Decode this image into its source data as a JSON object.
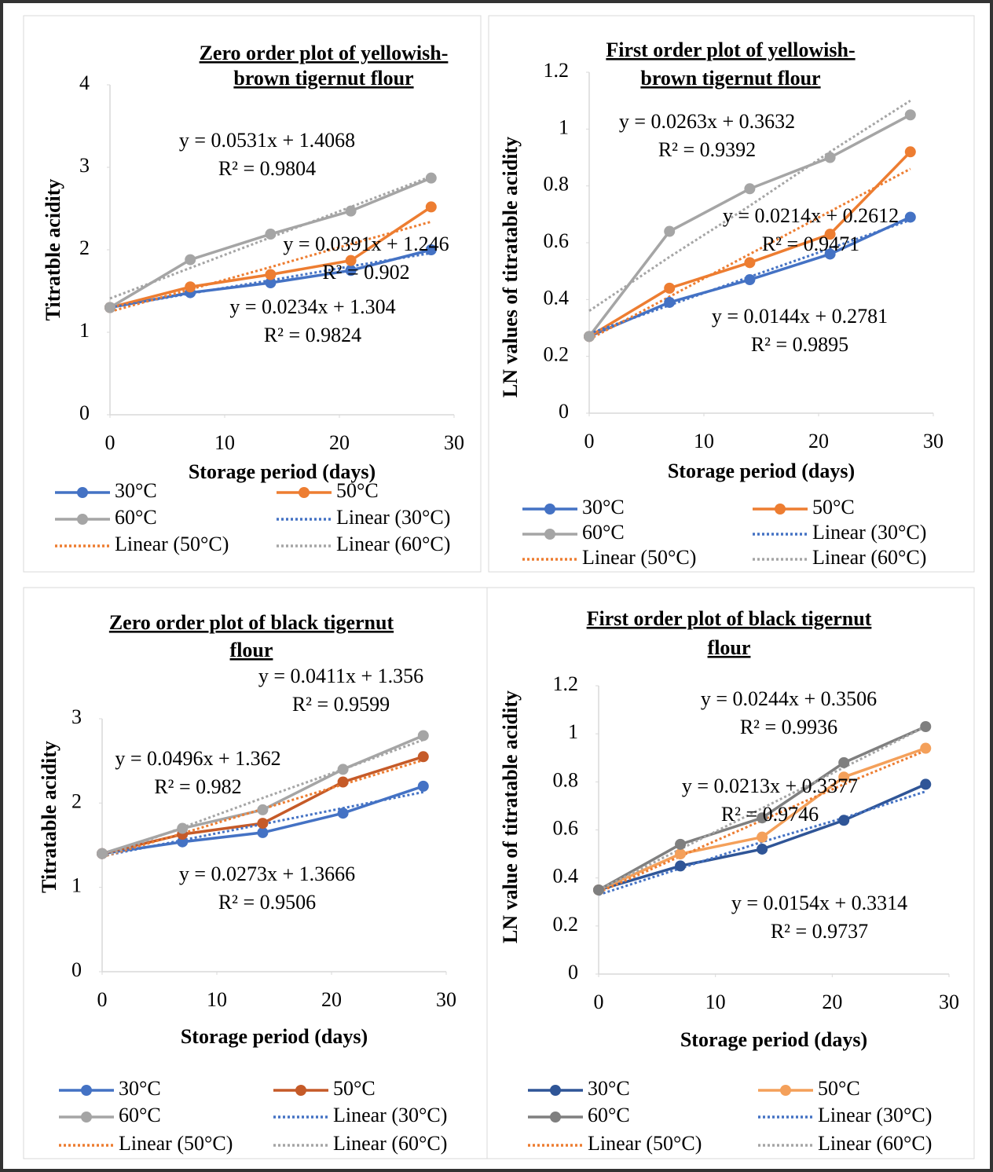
{
  "chart_data": [
    {
      "type": "line",
      "title": [
        "Zero order plot of yellowish-",
        "brown tigernut flour"
      ],
      "x_label": "Storage period (days)",
      "y_label": "Titratble acidity",
      "x": [
        0,
        7,
        14,
        21,
        28
      ],
      "xlim": [
        0,
        30
      ],
      "xticks": [
        0,
        10,
        20,
        30
      ],
      "ylim": [
        0,
        4
      ],
      "yticks": [
        0,
        1,
        2,
        3,
        4
      ],
      "series": [
        {
          "name": "30°C",
          "color": "#4472c4",
          "values": [
            1.3,
            1.48,
            1.6,
            1.75,
            2.0
          ]
        },
        {
          "name": "50°C",
          "color": "#ed7d31",
          "values": [
            1.3,
            1.55,
            1.7,
            1.87,
            2.52
          ]
        },
        {
          "name": "60°C",
          "color": "#a5a5a5",
          "values": [
            1.3,
            1.88,
            2.19,
            2.47,
            2.87
          ]
        },
        {
          "name": "Linear (30°C)",
          "color": "#4472c4",
          "dotted": true,
          "values": [
            1.3,
            1.47,
            1.63,
            1.8,
            1.96
          ]
        },
        {
          "name": "Linear (50°C)",
          "color": "#ed7d31",
          "dotted": true,
          "values": [
            1.25,
            1.52,
            1.79,
            2.07,
            2.34
          ]
        },
        {
          "name": "Linear (60°C)",
          "color": "#a5a5a5",
          "dotted": true,
          "values": [
            1.41,
            1.78,
            2.15,
            2.52,
            2.89
          ]
        }
      ],
      "annotations": [
        {
          "equation": "y = 0.0234x + 1.304",
          "r2": "R² = 0.9824"
        },
        {
          "equation": "y = 0.0391x + 1.246",
          "r2": "R² = 0.902"
        },
        {
          "equation": "y = 0.0531x + 1.4068",
          "r2": "R² = 0.9804"
        }
      ]
    },
    {
      "type": "line",
      "title": [
        "First order plot of yellowish-",
        "brown tigernut flour"
      ],
      "x_label": "Storage period (days)",
      "y_label": "LN values of titratable acidity",
      "x": [
        0,
        7,
        14,
        21,
        28
      ],
      "xlim": [
        0,
        30
      ],
      "xticks": [
        0,
        10,
        20,
        30
      ],
      "ylim": [
        0,
        1.2
      ],
      "yticks": [
        0,
        0.2,
        0.4,
        0.6,
        0.8,
        1,
        1.2
      ],
      "series": [
        {
          "name": "30°C",
          "color": "#4472c4",
          "values": [
            0.27,
            0.39,
            0.47,
            0.56,
            0.69
          ]
        },
        {
          "name": "50°C",
          "color": "#ed7d31",
          "values": [
            0.27,
            0.44,
            0.53,
            0.63,
            0.92
          ]
        },
        {
          "name": "60°C",
          "color": "#a5a5a5",
          "values": [
            0.27,
            0.64,
            0.79,
            0.9,
            1.05
          ]
        },
        {
          "name": "Linear (30°C)",
          "color": "#4472c4",
          "dotted": true,
          "values": [
            0.28,
            0.38,
            0.48,
            0.58,
            0.68
          ]
        },
        {
          "name": "Linear (50°C)",
          "color": "#ed7d31",
          "dotted": true,
          "values": [
            0.26,
            0.41,
            0.56,
            0.71,
            0.86
          ]
        },
        {
          "name": "Linear (60°C)",
          "color": "#a5a5a5",
          "dotted": true,
          "values": [
            0.36,
            0.55,
            0.73,
            0.92,
            1.1
          ]
        }
      ],
      "annotations": [
        {
          "equation": "y = 0.0144x + 0.2781",
          "r2": "R² = 0.9895"
        },
        {
          "equation": "y = 0.0214x + 0.2612",
          "r2": "R² = 0.9471"
        },
        {
          "equation": "y = 0.0263x + 0.3632",
          "r2": "R² = 0.9392"
        }
      ]
    },
    {
      "type": "line",
      "title": [
        "Zero order plot of black tigernut",
        "flour"
      ],
      "x_label": "Storage period (days)",
      "y_label": "Titratable acidity",
      "x": [
        0,
        7,
        14,
        21,
        28
      ],
      "xlim": [
        0,
        30
      ],
      "xticks": [
        0,
        10,
        20,
        30
      ],
      "ylim": [
        0,
        3
      ],
      "yticks": [
        0,
        1,
        2,
        3
      ],
      "series": [
        {
          "name": "30°C",
          "color": "#4472c4",
          "values": [
            1.4,
            1.54,
            1.65,
            1.88,
            2.2
          ]
        },
        {
          "name": "50°C",
          "color": "#c55a28",
          "values": [
            1.4,
            1.63,
            1.76,
            2.25,
            2.55
          ]
        },
        {
          "name": "60°C",
          "color": "#a5a5a5",
          "values": [
            1.4,
            1.7,
            1.92,
            2.4,
            2.8
          ]
        },
        {
          "name": "Linear (30°C)",
          "color": "#4472c4",
          "dotted": true,
          "values": [
            1.37,
            1.56,
            1.75,
            1.94,
            2.13
          ]
        },
        {
          "name": "Linear (50°C)",
          "color": "#ed7d31",
          "dotted": true,
          "values": [
            1.36,
            1.64,
            1.93,
            2.22,
            2.51
          ]
        },
        {
          "name": "Linear (60°C)",
          "color": "#a5a5a5",
          "dotted": true,
          "values": [
            1.36,
            1.71,
            2.06,
            2.4,
            2.75
          ]
        }
      ],
      "annotations": [
        {
          "equation": "y = 0.0273x + 1.3666",
          "r2": "R² = 0.9506"
        },
        {
          "equation": "y = 0.0411x + 1.356",
          "r2": "R² = 0.9599"
        },
        {
          "equation": "y = 0.0496x + 1.362",
          "r2": "R² = 0.982"
        }
      ]
    },
    {
      "type": "line",
      "title": [
        "First order plot of black tigernut",
        "flour"
      ],
      "x_label": "Storage period (days)",
      "y_label": "LN value of titratable acidity",
      "x": [
        0,
        7,
        14,
        21,
        28
      ],
      "xlim": [
        0,
        30
      ],
      "xticks": [
        0,
        10,
        20,
        30
      ],
      "ylim": [
        0,
        1.2
      ],
      "yticks": [
        0,
        0.2,
        0.4,
        0.6,
        0.8,
        1,
        1.2
      ],
      "series": [
        {
          "name": "30°C",
          "color": "#2f5597",
          "values": [
            0.35,
            0.45,
            0.52,
            0.64,
            0.79
          ]
        },
        {
          "name": "50°C",
          "color": "#f4a05a",
          "values": [
            0.35,
            0.5,
            0.57,
            0.82,
            0.94
          ]
        },
        {
          "name": "60°C",
          "color": "#7f7f7f",
          "values": [
            0.35,
            0.54,
            0.65,
            0.88,
            1.03
          ]
        },
        {
          "name": "Linear (30°C)",
          "color": "#4472c4",
          "dotted": true,
          "values": [
            0.33,
            0.44,
            0.55,
            0.65,
            0.76
          ]
        },
        {
          "name": "Linear (50°C)",
          "color": "#ed7d31",
          "dotted": true,
          "values": [
            0.34,
            0.49,
            0.64,
            0.79,
            0.93
          ]
        },
        {
          "name": "Linear (60°C)",
          "color": "#a5a5a5",
          "dotted": true,
          "values": [
            0.35,
            0.52,
            0.69,
            0.86,
            1.03
          ]
        }
      ],
      "annotations": [
        {
          "equation": "y = 0.0154x + 0.3314",
          "r2": "R² = 0.9737"
        },
        {
          "equation": "y = 0.0213x + 0.3377",
          "r2": "R² = 0.9746"
        },
        {
          "equation": "y = 0.0244x + 0.3506",
          "r2": "R² = 0.9936"
        }
      ]
    }
  ]
}
